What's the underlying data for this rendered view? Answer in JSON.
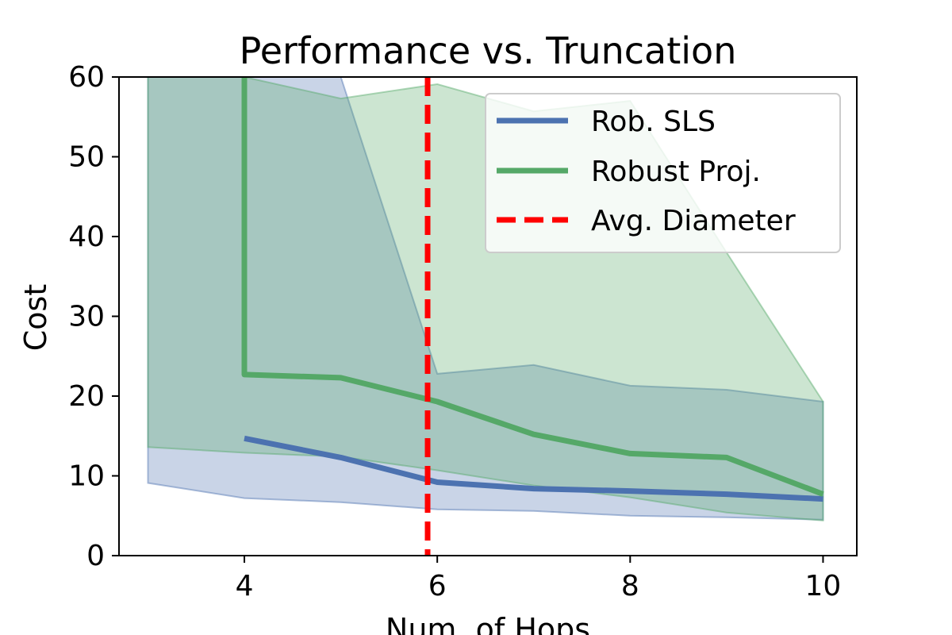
{
  "chart_data": {
    "type": "line",
    "title": "Performance vs. Truncation",
    "xlabel": "Num. of Hops",
    "ylabel": "Cost",
    "xlim": [
      2.7,
      10.35
    ],
    "ylim": [
      0,
      60
    ],
    "xticks": [
      4,
      6,
      8,
      10
    ],
    "yticks": [
      0,
      10,
      20,
      30,
      40,
      50,
      60
    ],
    "grid": false,
    "legend_position": "top-right",
    "series": [
      {
        "name": "Rob. SLS",
        "color": "#4c72b0",
        "x": [
          4,
          5,
          6,
          7,
          8,
          9,
          10
        ],
        "y": [
          14.7,
          12.3,
          9.2,
          8.4,
          8.1,
          7.7,
          7.1
        ],
        "band_x": [
          3,
          4,
          5,
          6,
          7,
          8,
          9,
          10
        ],
        "band_lower": [
          9.1,
          7.2,
          6.7,
          5.8,
          5.6,
          5.0,
          4.8,
          4.5
        ],
        "band_upper": [
          60,
          60,
          60,
          22.8,
          23.9,
          21.3,
          20.8,
          19.3
        ]
      },
      {
        "name": "Robust Proj.",
        "color": "#55a868",
        "x": [
          4,
          4,
          5,
          6,
          7,
          8,
          9,
          10
        ],
        "y": [
          60,
          22.7,
          22.3,
          19.3,
          15.2,
          12.8,
          12.3,
          7.7
        ],
        "band_x": [
          3,
          4,
          5,
          6,
          7,
          8,
          9,
          10
        ],
        "band_lower": [
          13.6,
          12.9,
          12.4,
          10.7,
          8.8,
          7.3,
          5.4,
          4.4
        ],
        "band_upper": [
          60,
          60,
          57.3,
          59.1,
          55.7,
          57.0,
          38.0,
          19.3
        ]
      }
    ],
    "annotations": [
      {
        "type": "vline",
        "name": "Avg. Diameter",
        "x": 5.9,
        "color": "#ff0000",
        "style": "dashed"
      }
    ]
  }
}
